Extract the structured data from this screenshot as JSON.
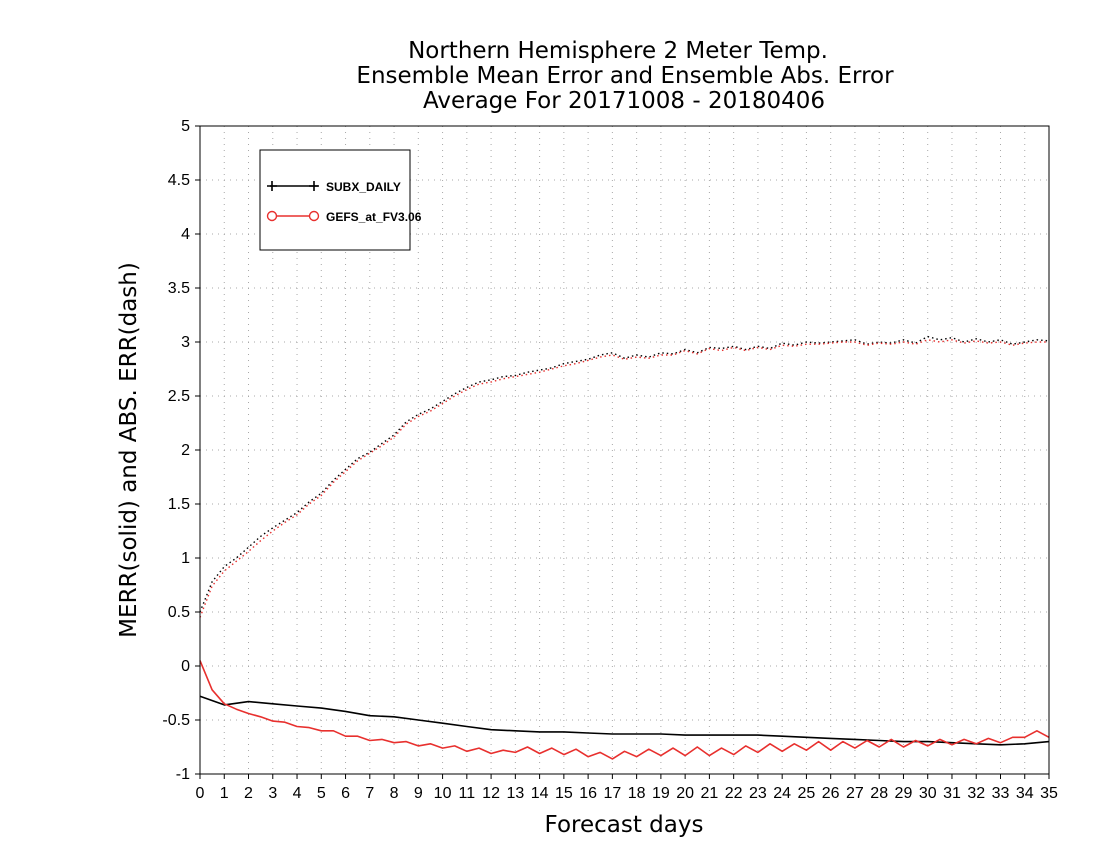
{
  "chart_data": {
    "type": "line",
    "title": [
      "Northern Hemisphere 2 Meter Temp.",
      "Ensemble Mean Error and Ensemble Abs. Error",
      "Average For 20171008 - 20180406"
    ],
    "xlabel": "Forecast days",
    "ylabel": "MERR(solid) and ABS. ERR(dash)",
    "xlim": [
      0,
      35
    ],
    "ylim": [
      -1,
      5
    ],
    "x_ticks": [
      0,
      1,
      2,
      3,
      4,
      5,
      6,
      7,
      8,
      9,
      10,
      11,
      12,
      13,
      14,
      15,
      16,
      17,
      18,
      19,
      20,
      21,
      22,
      23,
      24,
      25,
      26,
      27,
      28,
      29,
      30,
      31,
      32,
      33,
      34,
      35
    ],
    "y_ticks": [
      -1,
      -0.5,
      0,
      0.5,
      1,
      1.5,
      2,
      2.5,
      3,
      3.5,
      4,
      4.5,
      5
    ],
    "grid": true,
    "legend_position": "top-left",
    "legend": [
      {
        "label": "SUBX_DAILY",
        "color": "#000000",
        "marker": "plus"
      },
      {
        "label": "GEFS_at_FV3.06",
        "color": "#e8302e",
        "marker": "circle"
      }
    ],
    "series": [
      {
        "name": "SUBX_DAILY",
        "style": "solid",
        "color": "#000000",
        "x": [
          0,
          1,
          2,
          3,
          4,
          5,
          6,
          7,
          8,
          9,
          10,
          11,
          12,
          13,
          14,
          15,
          16,
          17,
          18,
          19,
          20,
          21,
          22,
          23,
          24,
          25,
          26,
          27,
          28,
          29,
          30,
          31,
          32,
          33,
          34,
          35
        ],
        "values": [
          -0.28,
          -0.36,
          -0.33,
          -0.35,
          -0.37,
          -0.39,
          -0.42,
          -0.46,
          -0.47,
          -0.5,
          -0.53,
          -0.56,
          -0.59,
          -0.6,
          -0.61,
          -0.61,
          -0.62,
          -0.63,
          -0.63,
          -0.63,
          -0.64,
          -0.64,
          -0.64,
          -0.64,
          -0.65,
          -0.66,
          -0.67,
          -0.68,
          -0.69,
          -0.7,
          -0.7,
          -0.71,
          -0.72,
          -0.73,
          -0.72,
          -0.7
        ]
      },
      {
        "name": "GEFS_at_FV3.06",
        "style": "solid",
        "color": "#e8302e",
        "x": [
          0,
          0.5,
          1,
          1.5,
          2,
          2.5,
          3,
          3.5,
          4,
          4.5,
          5,
          5.5,
          6,
          6.5,
          7,
          7.5,
          8,
          8.5,
          9,
          9.5,
          10,
          10.5,
          11,
          11.5,
          12,
          12.5,
          13,
          13.5,
          14,
          14.5,
          15,
          15.5,
          16,
          16.5,
          17,
          17.5,
          18,
          18.5,
          19,
          19.5,
          20,
          20.5,
          21,
          21.5,
          22,
          22.5,
          23,
          23.5,
          24,
          24.5,
          25,
          25.5,
          26,
          26.5,
          27,
          27.5,
          28,
          28.5,
          29,
          29.5,
          30,
          30.5,
          31,
          31.5,
          32,
          32.5,
          33,
          33.5,
          34,
          34.5,
          35
        ],
        "values": [
          0.05,
          -0.22,
          -0.35,
          -0.4,
          -0.44,
          -0.47,
          -0.51,
          -0.52,
          -0.56,
          -0.57,
          -0.6,
          -0.6,
          -0.65,
          -0.65,
          -0.69,
          -0.68,
          -0.71,
          -0.7,
          -0.74,
          -0.72,
          -0.76,
          -0.74,
          -0.79,
          -0.76,
          -0.81,
          -0.78,
          -0.8,
          -0.75,
          -0.81,
          -0.76,
          -0.82,
          -0.77,
          -0.84,
          -0.8,
          -0.86,
          -0.79,
          -0.84,
          -0.77,
          -0.83,
          -0.76,
          -0.83,
          -0.75,
          -0.83,
          -0.76,
          -0.82,
          -0.74,
          -0.8,
          -0.72,
          -0.79,
          -0.72,
          -0.78,
          -0.7,
          -0.78,
          -0.7,
          -0.76,
          -0.69,
          -0.75,
          -0.68,
          -0.75,
          -0.69,
          -0.74,
          -0.68,
          -0.73,
          -0.68,
          -0.72,
          -0.67,
          -0.71,
          -0.66,
          -0.66,
          -0.6,
          -0.66
        ]
      },
      {
        "name": "SUBX_DAILY",
        "style": "dotted",
        "color": "#000000",
        "x": [
          0,
          0.5,
          1,
          1.5,
          2,
          2.5,
          3,
          3.5,
          4,
          4.5,
          5,
          5.5,
          6,
          6.5,
          7,
          7.5,
          8,
          8.5,
          9,
          9.5,
          10,
          10.5,
          11,
          11.5,
          12,
          12.5,
          13,
          13.5,
          14,
          14.5,
          15,
          15.5,
          16,
          16.5,
          17,
          17.5,
          18,
          18.5,
          19,
          19.5,
          20,
          20.5,
          21,
          21.5,
          22,
          22.5,
          23,
          23.5,
          24,
          24.5,
          25,
          25.5,
          26,
          26.5,
          27,
          27.5,
          28,
          28.5,
          29,
          29.5,
          30,
          30.5,
          31,
          31.5,
          32,
          32.5,
          33,
          33.5,
          34,
          34.5,
          35
        ],
        "values": [
          0.5,
          0.78,
          0.92,
          1.0,
          1.1,
          1.2,
          1.28,
          1.35,
          1.42,
          1.52,
          1.6,
          1.72,
          1.82,
          1.92,
          1.98,
          2.06,
          2.14,
          2.26,
          2.33,
          2.38,
          2.45,
          2.52,
          2.58,
          2.63,
          2.65,
          2.68,
          2.69,
          2.72,
          2.74,
          2.76,
          2.8,
          2.82,
          2.84,
          2.88,
          2.9,
          2.85,
          2.88,
          2.86,
          2.9,
          2.89,
          2.93,
          2.9,
          2.95,
          2.94,
          2.96,
          2.93,
          2.96,
          2.94,
          2.99,
          2.97,
          3.0,
          2.99,
          3.0,
          3.01,
          3.02,
          2.98,
          3.0,
          2.99,
          3.02,
          2.99,
          3.05,
          3.02,
          3.04,
          3.0,
          3.03,
          3.0,
          3.02,
          2.98,
          3.0,
          3.02,
          3.01
        ]
      },
      {
        "name": "GEFS_at_FV3.06",
        "style": "dotted",
        "color": "#e8302e",
        "x": [
          0,
          0.5,
          1,
          1.5,
          2,
          2.5,
          3,
          3.5,
          4,
          4.5,
          5,
          5.5,
          6,
          6.5,
          7,
          7.5,
          8,
          8.5,
          9,
          9.5,
          10,
          10.5,
          11,
          11.5,
          12,
          12.5,
          13,
          13.5,
          14,
          14.5,
          15,
          15.5,
          16,
          16.5,
          17,
          17.5,
          18,
          18.5,
          19,
          19.5,
          20,
          20.5,
          21,
          21.5,
          22,
          22.5,
          23,
          23.5,
          24,
          24.5,
          25,
          25.5,
          26,
          26.5,
          27,
          27.5,
          28,
          28.5,
          29,
          29.5,
          30,
          30.5,
          31,
          31.5,
          32,
          32.5,
          33,
          33.5,
          34,
          34.5,
          35
        ],
        "values": [
          0.45,
          0.74,
          0.88,
          0.97,
          1.06,
          1.16,
          1.25,
          1.33,
          1.4,
          1.5,
          1.58,
          1.7,
          1.8,
          1.9,
          1.97,
          2.04,
          2.12,
          2.24,
          2.31,
          2.36,
          2.43,
          2.5,
          2.56,
          2.61,
          2.63,
          2.66,
          2.68,
          2.7,
          2.72,
          2.75,
          2.78,
          2.8,
          2.83,
          2.86,
          2.88,
          2.84,
          2.86,
          2.85,
          2.88,
          2.88,
          2.92,
          2.89,
          2.94,
          2.92,
          2.95,
          2.92,
          2.95,
          2.93,
          2.97,
          2.96,
          2.98,
          2.98,
          2.99,
          3.0,
          3.0,
          2.97,
          2.99,
          2.98,
          3.0,
          2.98,
          3.02,
          3.0,
          3.02,
          2.99,
          3.01,
          2.99,
          3.0,
          2.97,
          2.99,
          3.0,
          3.0
        ]
      }
    ]
  }
}
